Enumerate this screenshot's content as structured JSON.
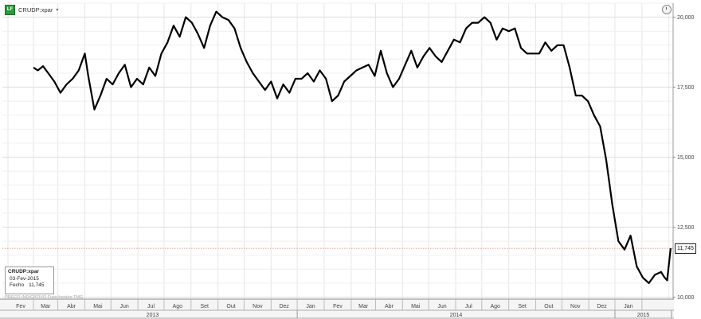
{
  "header": {
    "title": "CRUDP:xpar",
    "logo_text": "LF",
    "caret": "▾"
  },
  "icons": {
    "logo": "terminal-logo-icon",
    "dropdown": "chevron-down-icon",
    "clock": "clock-icon"
  },
  "colors": {
    "line": "#000000",
    "reference_line": "#e0826f",
    "grid": "#e3e3e3"
  },
  "infobox": {
    "title": "CRUDP:xpar",
    "date": "03-Fev-2015",
    "close_label": "Fecho",
    "close_value": "11,745"
  },
  "last_value_label": "11,745",
  "footnote": "PREÇO INDICATIVO    Fuso horário TMG",
  "chart_data": {
    "type": "line",
    "title": "",
    "xlabel": "",
    "ylabel": "",
    "y_axis_side": "right",
    "ylim": [
      10000,
      20500
    ],
    "yticks": [
      10000,
      12500,
      15000,
      17500,
      20000
    ],
    "ytick_labels": [
      "10,000",
      "12,500",
      "15,000",
      "17,500",
      "20,000"
    ],
    "months": [
      "Fev",
      "Mar",
      "Abr",
      "Mai",
      "Jun",
      "Jul",
      "Ago",
      "Set",
      "Out",
      "Nov",
      "Dez",
      "Jan",
      "Fev",
      "Mar",
      "Abr",
      "Mai",
      "Jun",
      "Jul",
      "Ago",
      "Set",
      "Out",
      "Nov",
      "Dez",
      "Jan"
    ],
    "years": [
      "2013",
      "2014",
      "2015"
    ],
    "grid": true,
    "reference_line": 11745,
    "series": [
      {
        "x": [
          "2013-02-01",
          "2013-02-06",
          "2013-02-12",
          "2013-02-18",
          "2013-02-25",
          "2013-03-04",
          "2013-03-11",
          "2013-03-18",
          "2013-03-25",
          "2013-04-01",
          "2013-04-05",
          "2013-04-12",
          "2013-04-19",
          "2013-04-26",
          "2013-05-03",
          "2013-05-10",
          "2013-05-17",
          "2013-05-24",
          "2013-05-31",
          "2013-06-07",
          "2013-06-14",
          "2013-06-21",
          "2013-06-28",
          "2013-07-05",
          "2013-07-12",
          "2013-07-19",
          "2013-07-26",
          "2013-08-02",
          "2013-08-09",
          "2013-08-16",
          "2013-08-23",
          "2013-08-30",
          "2013-09-06",
          "2013-09-13",
          "2013-09-20",
          "2013-09-27",
          "2013-10-04",
          "2013-10-11",
          "2013-10-18",
          "2013-10-25",
          "2013-11-01",
          "2013-11-08",
          "2013-11-15",
          "2013-11-22",
          "2013-11-29",
          "2013-12-06",
          "2013-12-13",
          "2013-12-20",
          "2013-12-27",
          "2014-01-03",
          "2014-01-10",
          "2014-01-17",
          "2014-01-24",
          "2014-01-31",
          "2014-02-07",
          "2014-02-14",
          "2014-02-21",
          "2014-02-28",
          "2014-03-07",
          "2014-03-14",
          "2014-03-21",
          "2014-03-28",
          "2014-04-04",
          "2014-04-11",
          "2014-04-18",
          "2014-04-25",
          "2014-05-02",
          "2014-05-09",
          "2014-05-16",
          "2014-05-23",
          "2014-05-30",
          "2014-06-06",
          "2014-06-13",
          "2014-06-20",
          "2014-06-27",
          "2014-07-04",
          "2014-07-11",
          "2014-07-18",
          "2014-07-25",
          "2014-08-01",
          "2014-08-08",
          "2014-08-15",
          "2014-08-22",
          "2014-08-29",
          "2014-09-05",
          "2014-09-12",
          "2014-09-19",
          "2014-09-26",
          "2014-10-03",
          "2014-10-10",
          "2014-10-17",
          "2014-10-24",
          "2014-10-31",
          "2014-11-07",
          "2014-11-14",
          "2014-11-21",
          "2014-11-28",
          "2014-12-05",
          "2014-12-12",
          "2014-12-19",
          "2014-12-26",
          "2015-01-02",
          "2015-01-09",
          "2015-01-16",
          "2015-01-23",
          "2015-01-27",
          "2015-01-30",
          "2015-02-03"
        ],
        "y": [
          18200,
          18100,
          18250,
          18000,
          17700,
          17300,
          17600,
          17800,
          18100,
          18700,
          17900,
          16700,
          17200,
          17800,
          17600,
          18000,
          18300,
          17500,
          17800,
          17600,
          18200,
          17900,
          18700,
          19100,
          19700,
          19300,
          20000,
          19800,
          19400,
          18900,
          19700,
          20200,
          20000,
          19900,
          19600,
          18900,
          18400,
          18000,
          17700,
          17400,
          17700,
          17100,
          17600,
          17300,
          17800,
          17800,
          18000,
          17700,
          18100,
          17800,
          17000,
          17200,
          17700,
          17900,
          18100,
          18200,
          18300,
          17900,
          18800,
          18000,
          17500,
          17800,
          18300,
          18800,
          18200,
          18600,
          18900,
          18600,
          18400,
          18800,
          19200,
          19100,
          19600,
          19800,
          19800,
          20000,
          19800,
          19200,
          19600,
          19500,
          19600,
          18900,
          18700,
          18700,
          18700,
          19100,
          18800,
          19000,
          19000,
          18200,
          17200,
          17200,
          17000,
          16500,
          16100,
          14900,
          13300,
          12000,
          11700,
          12200,
          11100,
          10700,
          10500,
          10800,
          10900,
          10700,
          10600,
          11745
        ]
      }
    ]
  }
}
